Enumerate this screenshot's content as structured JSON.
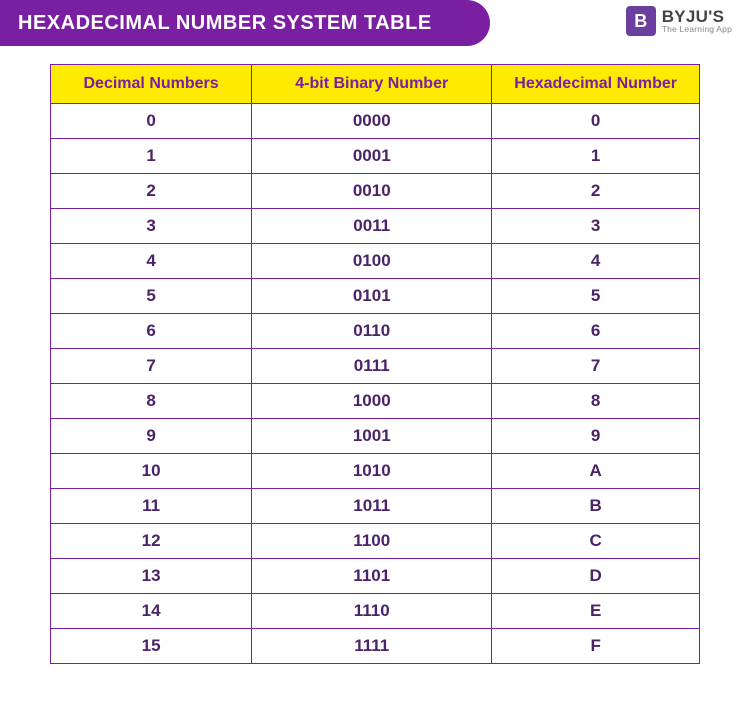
{
  "header": {
    "title": "HEXADECIMAL NUMBER SYSTEM TABLE",
    "title_bg": "#7a1fa2",
    "title_color": "#ffffff"
  },
  "brand": {
    "logo_letter": "B",
    "name": "BYJU'S",
    "tagline": "The Learning App",
    "logo_bg": "#6b3fa0"
  },
  "table": {
    "type": "table",
    "header_bg": "#ffeb00",
    "header_text_color": "#7a1fa2",
    "border_color": "#7a1fa2",
    "cell_text_color": "#4a2368",
    "font_weight": 700,
    "header_fontsize": 16,
    "cell_fontsize": 17,
    "columns": [
      {
        "label": "Decimal Numbers",
        "width_pct": 31
      },
      {
        "label": "4-bit Binary Number",
        "width_pct": 37
      },
      {
        "label": "Hexadecimal Number",
        "width_pct": 32
      }
    ],
    "rows": [
      [
        "0",
        "0000",
        "0"
      ],
      [
        "1",
        "0001",
        "1"
      ],
      [
        "2",
        "0010",
        "2"
      ],
      [
        "3",
        "0011",
        "3"
      ],
      [
        "4",
        "0100",
        "4"
      ],
      [
        "5",
        "0101",
        "5"
      ],
      [
        "6",
        "0110",
        "6"
      ],
      [
        "7",
        "0111",
        "7"
      ],
      [
        "8",
        "1000",
        "8"
      ],
      [
        "9",
        "1001",
        "9"
      ],
      [
        "10",
        "1010",
        "A"
      ],
      [
        "11",
        "1011",
        "B"
      ],
      [
        "12",
        "1100",
        "C"
      ],
      [
        "13",
        "1101",
        "D"
      ],
      [
        "14",
        "1110",
        "E"
      ],
      [
        "15",
        "1111",
        "F"
      ]
    ]
  }
}
